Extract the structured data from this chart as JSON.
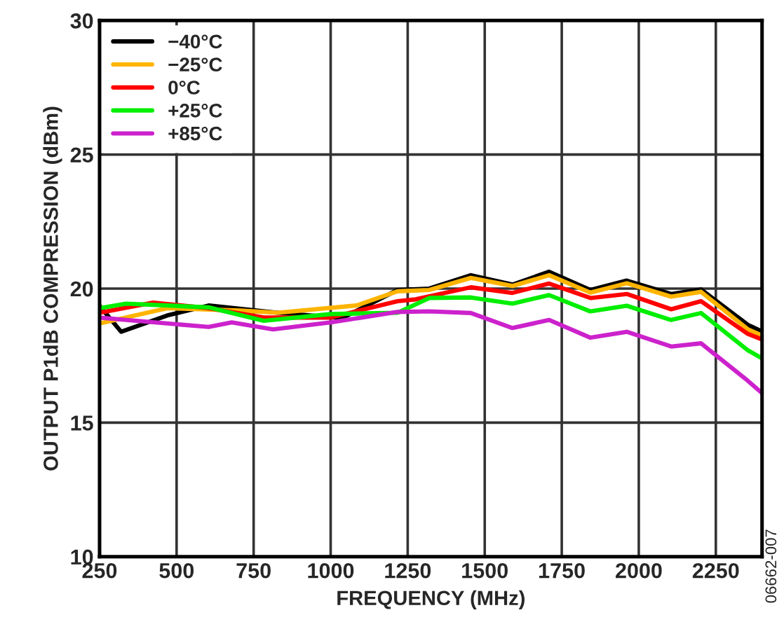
{
  "chart_data": {
    "type": "line",
    "xlabel": "FREQUENCY (MHz)",
    "ylabel": "OUTPUT P1dB COMPRESSION (dBm)",
    "xlim": [
      250,
      2400
    ],
    "ylim": [
      10,
      30
    ],
    "xticks": [
      250,
      500,
      750,
      1000,
      1250,
      1500,
      1750,
      2000,
      2250
    ],
    "yticks": [
      10,
      15,
      20,
      25,
      30
    ],
    "grid": true,
    "legend": "top left",
    "marker": "none",
    "line_style": "solid",
    "annotations": [
      "06662-007"
    ],
    "series": [
      {
        "name": "−40°C",
        "color": "#000000",
        "x": [
          250,
          320,
          470,
          604,
          828,
          1038,
          1217,
          1320,
          1455,
          1590,
          1709,
          1843,
          1961,
          2105,
          2202,
          2354,
          2400
        ],
        "values": [
          19.36,
          18.39,
          19.0,
          19.37,
          19.1,
          18.9,
          19.95,
          20.0,
          20.5,
          20.15,
          20.63,
          19.95,
          20.3,
          19.8,
          19.97,
          18.65,
          18.4
        ]
      },
      {
        "name": "−25°C",
        "color": "#ffb400",
        "x": [
          250,
          470,
          707,
          828,
          1083,
          1217,
          1320,
          1455,
          1590,
          1709,
          1843,
          1961,
          2105,
          2202,
          2354,
          2400
        ],
        "values": [
          18.7,
          19.27,
          19.18,
          19.1,
          19.37,
          19.9,
          19.95,
          20.4,
          20.1,
          20.5,
          19.85,
          20.2,
          19.7,
          19.88,
          18.48,
          18.25
        ]
      },
      {
        "name": "0°C",
        "color": "#ff0000",
        "x": [
          250,
          424,
          604,
          783,
          1000,
          1217,
          1276,
          1455,
          1590,
          1709,
          1843,
          1961,
          2105,
          2202,
          2354,
          2400
        ],
        "values": [
          19.1,
          19.48,
          19.27,
          18.92,
          18.92,
          19.53,
          19.6,
          20.05,
          19.84,
          20.19,
          19.65,
          19.8,
          19.23,
          19.53,
          18.31,
          18.1
        ]
      },
      {
        "name": "+25°C",
        "color": "#00ee00",
        "x": [
          250,
          336,
          604,
          783,
          1000,
          1217,
          1320,
          1455,
          1590,
          1709,
          1843,
          1961,
          2105,
          2202,
          2354,
          2400
        ],
        "values": [
          19.27,
          19.44,
          19.3,
          18.8,
          19.05,
          19.1,
          19.65,
          19.67,
          19.44,
          19.76,
          19.15,
          19.36,
          18.83,
          19.09,
          17.7,
          17.4
        ]
      },
      {
        "name": "+85°C",
        "color": "#cc22cc",
        "x": [
          250,
          336,
          604,
          679,
          813,
          1000,
          1217,
          1320,
          1455,
          1590,
          1709,
          1843,
          1961,
          2105,
          2202,
          2354,
          2400
        ],
        "values": [
          18.92,
          18.83,
          18.57,
          18.74,
          18.48,
          18.74,
          19.13,
          19.15,
          19.09,
          18.53,
          18.83,
          18.17,
          18.39,
          17.84,
          17.96,
          16.56,
          16.1
        ]
      }
    ]
  }
}
